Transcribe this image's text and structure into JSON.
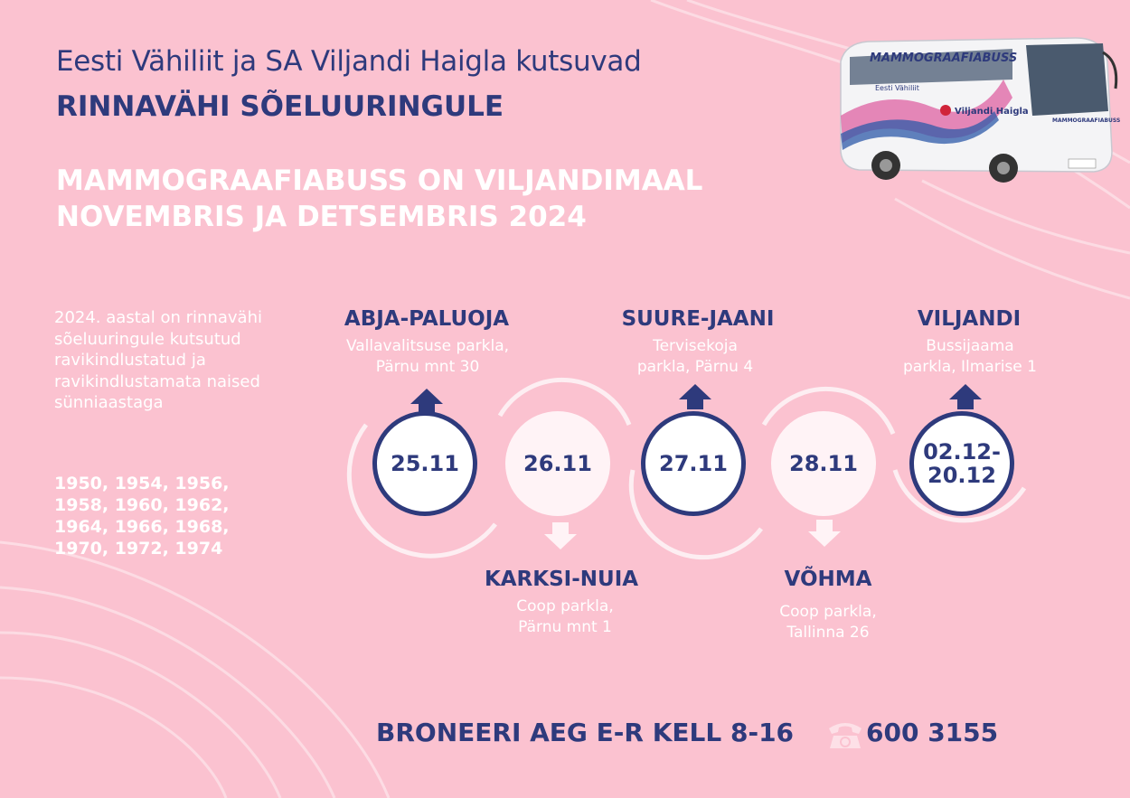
{
  "header": {
    "intro": "Eesti Vähiliit ja SA Viljandi Haigla kutsuvad",
    "headline": "RINNAVÄHI SÕELUURINGULE",
    "period_line1": "MAMMOGRAAFIABUSS ON VILJANDIMAAL",
    "period_line2": "NOVEMBRIS JA DETSEMBRIS 2024"
  },
  "bus": {
    "label": "MAMMOGRAAFIABUSS",
    "logo_left": "Eesti Vähiliit",
    "logo_right": "Viljandi Haigla",
    "front_label": "MAMMOGRAAFIABUSS"
  },
  "sidebar": {
    "text": "2024. aastal on rinnavähi sõeluuringule kutsutud ravikindlustatud ja ravikindlustamata naised sünniaastaga",
    "years": "1950, 1954, 1956, 1958, 1960, 1962, 1964, 1966, 1968, 1970, 1972, 1974"
  },
  "stops": [
    {
      "name": "ABJA-PALUOJA",
      "addr1": "Vallavalitsuse parkla,",
      "addr2": "Pärnu mnt 30",
      "date": "25.11"
    },
    {
      "name": "KARKSI-NUIA",
      "addr1": "Coop parkla,",
      "addr2": "Pärnu mnt 1",
      "date": "26.11"
    },
    {
      "name": "SUURE-JAANI",
      "addr1": "Tervisekoja",
      "addr2": "parkla, Pärnu 4",
      "date": "27.11"
    },
    {
      "name": "VÕHMA",
      "addr1": "Coop parkla,",
      "addr2": "Tallinna 26",
      "date": "28.11"
    },
    {
      "name": "VILJANDI",
      "addr1": "Bussijaama",
      "addr2": "parkla, Ilmarise 1",
      "date_line1": "02.12-",
      "date_line2": "20.12"
    }
  ],
  "footer": {
    "cta": "BRONEERI AEG E-R KELL 8-16",
    "phone_icon": "telephone-icon",
    "phone": "600 3155"
  },
  "colors": {
    "background": "#fbc2d0",
    "navy": "#2e3a7c",
    "white": "#ffffff",
    "light_circle": "#fff3f6"
  }
}
